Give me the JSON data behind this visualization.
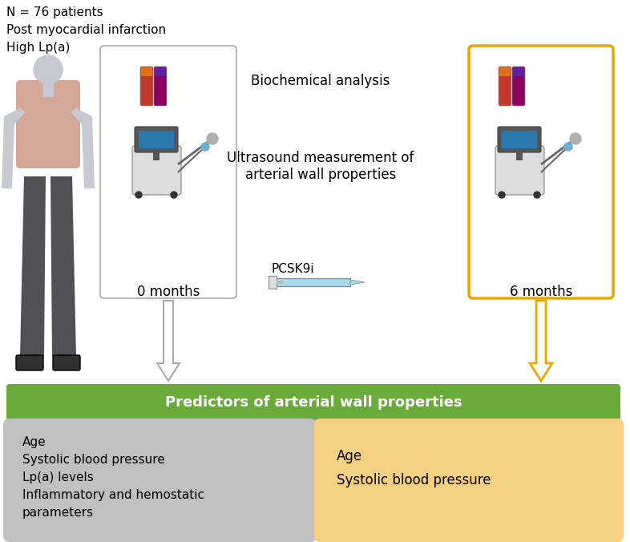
{
  "background_color": "#ffffff",
  "top_left_text": [
    "N = 76 patients",
    "Post myocardial infarction",
    "High Lp(a)"
  ],
  "center_text_line1": "Biochemical analysis",
  "center_text_line2": "Ultrasound measurement of\narterial wall properties",
  "pcsk9i_label": "PCSK9i",
  "box0_label": "0 months",
  "box6_label": "6 months",
  "green_bar_text": "Predictors of arterial wall properties",
  "green_bar_color": "#6aaa3a",
  "gray_box_color": "#c0c0c0",
  "yellow_box_color": "#f5d080",
  "yellow_border_color": "#e8a800",
  "gray_box_border": "#aaaaaa",
  "gray_box_text": [
    "Age",
    "Systolic blood pressure",
    "Lp(a) levels",
    "Inflammatory and hemostatic\nparameters"
  ],
  "yellow_box_text": [
    "Age",
    "Systolic blood pressure"
  ],
  "arrow_gray_color": "#cccccc",
  "arrow_gray_edge": "#aaaaaa",
  "arrow_yellow_color": "#e8a800",
  "human_skin_head": "#c8c8d0",
  "human_shirt": "#d4a898",
  "human_pants": "#505055",
  "human_skin_arms": "#c8c8d0",
  "tube_red_body": "#c0392b",
  "tube_red_cap": "#e07020",
  "tube_purple_body": "#8B0060",
  "tube_purple_cap": "#6020a0"
}
